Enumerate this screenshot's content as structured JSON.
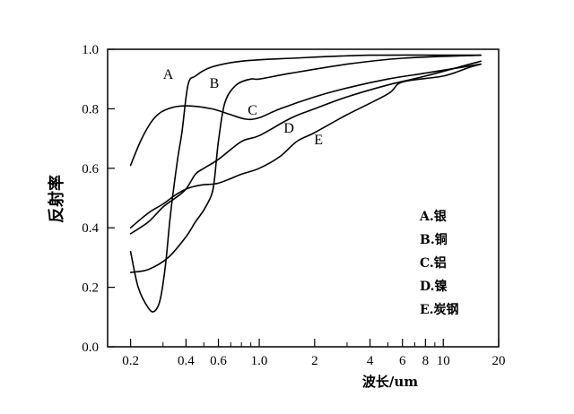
{
  "chart_data": {
    "type": "line",
    "title": "",
    "xlabel": "波长/um",
    "ylabel": "反射率",
    "x_scale": "log",
    "xlim": [
      0.15,
      20
    ],
    "ylim": [
      0,
      1.0
    ],
    "x_ticks": [
      {
        "value": 0.2,
        "label": "0.2"
      },
      {
        "value": 0.4,
        "label": "0.4"
      },
      {
        "value": 0.6,
        "label": "0.6"
      },
      {
        "value": 1.0,
        "label": "1.0"
      },
      {
        "value": 2,
        "label": "2"
      },
      {
        "value": 4,
        "label": "4"
      },
      {
        "value": 6,
        "label": "6"
      },
      {
        "value": 8,
        "label": "8"
      },
      {
        "value": 10,
        "label": "10"
      },
      {
        "value": 20,
        "label": "20"
      }
    ],
    "x_minor_ticks": [
      0.3,
      0.5,
      0.7,
      0.8,
      0.9,
      3,
      5,
      7,
      9
    ],
    "y_ticks": [
      {
        "value": 0.0,
        "label": "0.0"
      },
      {
        "value": 0.2,
        "label": "0.2"
      },
      {
        "value": 0.4,
        "label": "0.4"
      },
      {
        "value": 0.6,
        "label": "0.6"
      },
      {
        "value": 0.8,
        "label": "0.8"
      },
      {
        "value": 1.0,
        "label": "1.0"
      }
    ],
    "grid": false,
    "legend": {
      "placement": "bottom-right",
      "entries": [
        "A.银",
        "B.铜",
        "C.铝",
        "D.镍",
        "E.炭钢"
      ]
    },
    "series": [
      {
        "label": "A",
        "points": [
          [
            0.2,
            0.32
          ],
          [
            0.22,
            0.2
          ],
          [
            0.25,
            0.13
          ],
          [
            0.27,
            0.12
          ],
          [
            0.29,
            0.16
          ],
          [
            0.31,
            0.28
          ],
          [
            0.33,
            0.45
          ],
          [
            0.36,
            0.63
          ],
          [
            0.38,
            0.72
          ],
          [
            0.41,
            0.88
          ],
          [
            0.45,
            0.91
          ],
          [
            0.55,
            0.94
          ],
          [
            0.8,
            0.96
          ],
          [
            1.5,
            0.97
          ],
          [
            4,
            0.98
          ],
          [
            16,
            0.98
          ]
        ]
      },
      {
        "label": "B",
        "points": [
          [
            0.2,
            0.25
          ],
          [
            0.25,
            0.26
          ],
          [
            0.32,
            0.3
          ],
          [
            0.4,
            0.37
          ],
          [
            0.45,
            0.42
          ],
          [
            0.5,
            0.46
          ],
          [
            0.55,
            0.51
          ],
          [
            0.57,
            0.56
          ],
          [
            0.6,
            0.69
          ],
          [
            0.65,
            0.82
          ],
          [
            0.75,
            0.88
          ],
          [
            0.9,
            0.9
          ],
          [
            1.0,
            0.9
          ],
          [
            1.5,
            0.92
          ],
          [
            3,
            0.95
          ],
          [
            6,
            0.97
          ],
          [
            16,
            0.98
          ]
        ]
      },
      {
        "label": "C",
        "points": [
          [
            0.2,
            0.61
          ],
          [
            0.23,
            0.7
          ],
          [
            0.27,
            0.77
          ],
          [
            0.32,
            0.8
          ],
          [
            0.4,
            0.81
          ],
          [
            0.55,
            0.8
          ],
          [
            0.7,
            0.78
          ],
          [
            0.85,
            0.765
          ],
          [
            1.0,
            0.77
          ],
          [
            1.3,
            0.8
          ],
          [
            2,
            0.84
          ],
          [
            3,
            0.87
          ],
          [
            5,
            0.9
          ],
          [
            8,
            0.92
          ],
          [
            16,
            0.95
          ]
        ]
      },
      {
        "label": "D",
        "points": [
          [
            0.2,
            0.38
          ],
          [
            0.25,
            0.42
          ],
          [
            0.3,
            0.47
          ],
          [
            0.35,
            0.5
          ],
          [
            0.4,
            0.53
          ],
          [
            0.45,
            0.58
          ],
          [
            0.5,
            0.6
          ],
          [
            0.6,
            0.63
          ],
          [
            0.8,
            0.69
          ],
          [
            1.0,
            0.71
          ],
          [
            1.5,
            0.77
          ],
          [
            2,
            0.8
          ],
          [
            3,
            0.84
          ],
          [
            5,
            0.88
          ],
          [
            8,
            0.91
          ],
          [
            16,
            0.96
          ]
        ]
      },
      {
        "label": "E",
        "points": [
          [
            0.2,
            0.4
          ],
          [
            0.25,
            0.45
          ],
          [
            0.3,
            0.48
          ],
          [
            0.35,
            0.51
          ],
          [
            0.4,
            0.53
          ],
          [
            0.45,
            0.54
          ],
          [
            0.5,
            0.545
          ],
          [
            0.6,
            0.55
          ],
          [
            0.8,
            0.58
          ],
          [
            1.0,
            0.6
          ],
          [
            1.3,
            0.64
          ],
          [
            1.6,
            0.69
          ],
          [
            2,
            0.72
          ],
          [
            3,
            0.78
          ],
          [
            5,
            0.85
          ],
          [
            6,
            0.89
          ],
          [
            10,
            0.91
          ],
          [
            14,
            0.94
          ],
          [
            16,
            0.95
          ]
        ]
      }
    ],
    "curve_labels": [
      {
        "text": "A",
        "x": 0.32,
        "y": 0.9
      },
      {
        "text": "B",
        "x": 0.57,
        "y": 0.87
      },
      {
        "text": "C",
        "x": 0.92,
        "y": 0.78
      },
      {
        "text": "D",
        "x": 1.45,
        "y": 0.72
      },
      {
        "text": "E",
        "x": 2.1,
        "y": 0.68
      }
    ]
  }
}
